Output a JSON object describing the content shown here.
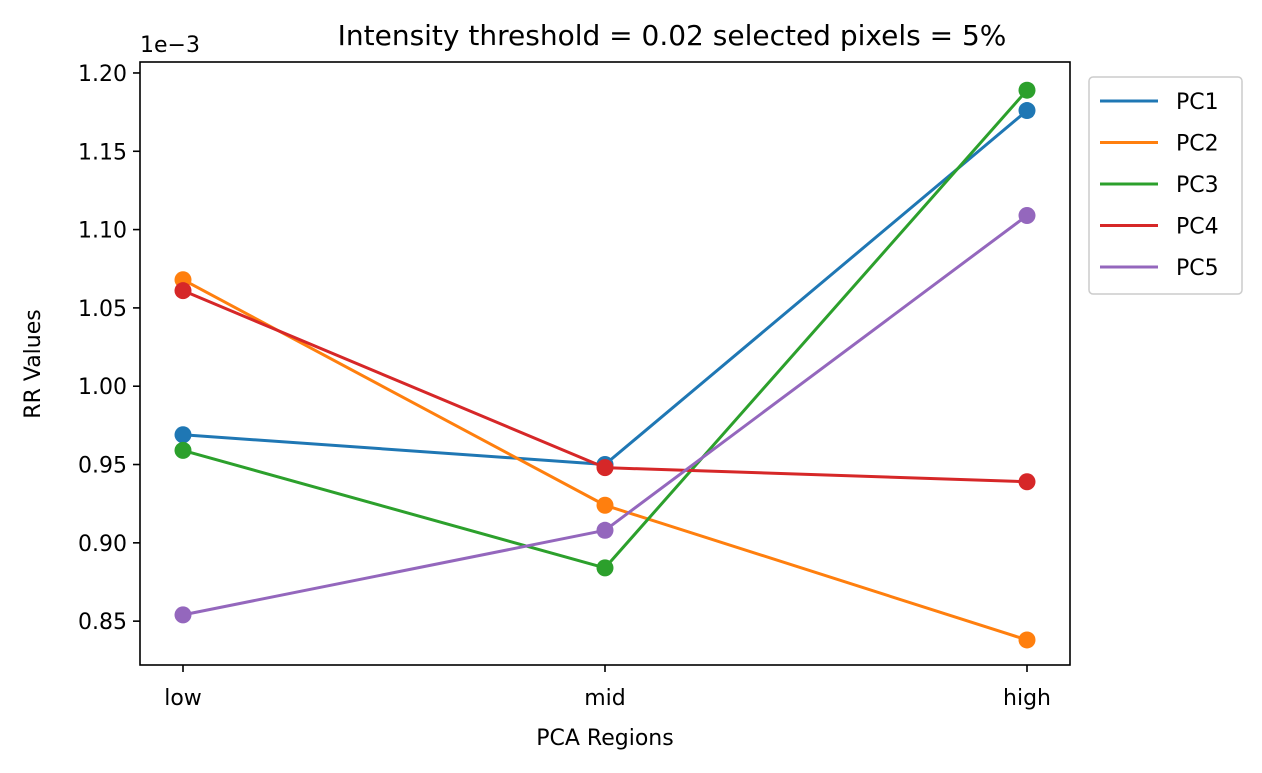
{
  "chart_data": {
    "type": "line",
    "title": "Intensity threshold = 0.02 selected pixels = 5%",
    "xlabel": "PCA Regions",
    "ylabel": "RR Values",
    "y_offset_text": "1e−3",
    "categories": [
      "low",
      "mid",
      "high"
    ],
    "ylim": [
      0.822,
      1.207
    ],
    "yticks": [
      0.85,
      0.9,
      0.95,
      1.0,
      1.05,
      1.1,
      1.15,
      1.2
    ],
    "ytick_labels": [
      "0.85",
      "0.90",
      "0.95",
      "1.00",
      "1.05",
      "1.10",
      "1.15",
      "1.20"
    ],
    "y_scale_note": "values shown ×1e-3",
    "grid": false,
    "legend_position": "outside-top-right",
    "series": [
      {
        "name": "PC1",
        "color": "#1f77b4",
        "values": [
          0.969,
          0.95,
          1.176
        ]
      },
      {
        "name": "PC2",
        "color": "#ff7f0e",
        "values": [
          1.068,
          0.924,
          0.838
        ]
      },
      {
        "name": "PC3",
        "color": "#2ca02c",
        "values": [
          0.959,
          0.884,
          1.189
        ]
      },
      {
        "name": "PC4",
        "color": "#d62728",
        "values": [
          1.061,
          0.948,
          0.939
        ]
      },
      {
        "name": "PC5",
        "color": "#9467bd",
        "values": [
          0.854,
          0.908,
          1.109
        ]
      }
    ]
  }
}
